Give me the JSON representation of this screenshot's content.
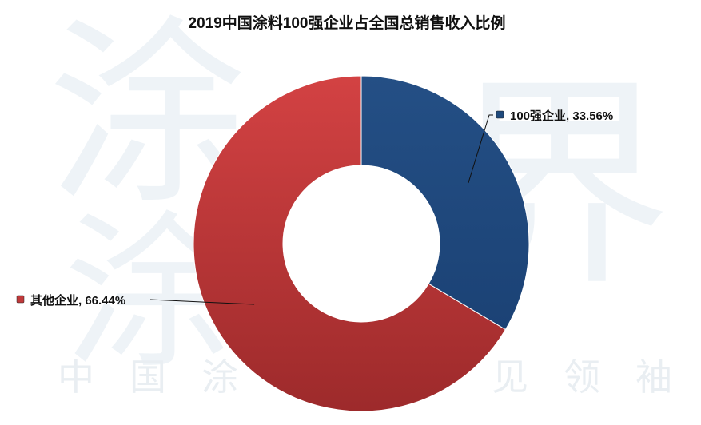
{
  "watermark": {
    "big_chars": [
      "涂",
      "涂",
      "界"
    ],
    "footer_chars": [
      "中",
      "国",
      "涂",
      "见",
      "领",
      "袖"
    ]
  },
  "chart_data": {
    "type": "pie",
    "donut": true,
    "title": "2019中国涂料100强企业占全国总销售收入比例",
    "slices": [
      {
        "label": "100强企业",
        "value": 33.56,
        "display": "33.56%",
        "color": "#1f4a7d"
      },
      {
        "label": "其他企业",
        "value": 66.44,
        "display": "66.44%",
        "color": "#c0393a"
      }
    ]
  }
}
